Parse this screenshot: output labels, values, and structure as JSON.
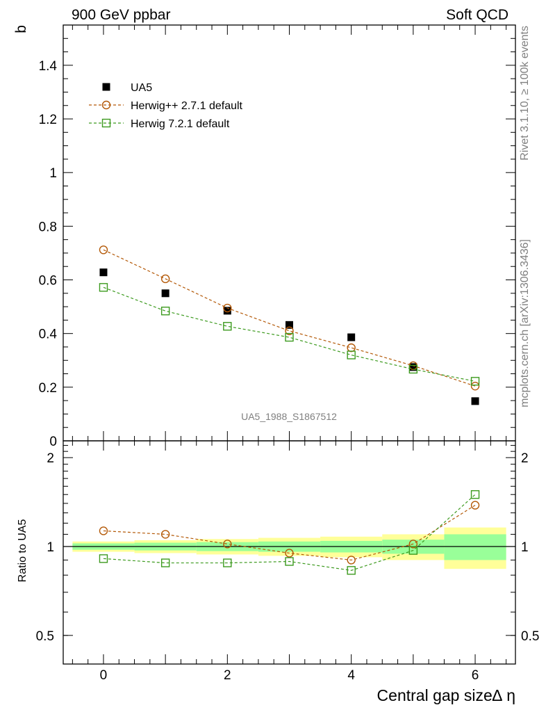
{
  "header": {
    "left_title": "900 GeV ppbar",
    "right_title": "Soft QCD"
  },
  "side_text": {
    "rivet": "Rivet 3.1.10, ≥ 100k events",
    "mcplots": "mcplots.cern.ch [arXiv:1306.3436]"
  },
  "chart_data": [
    {
      "type": "scatter",
      "panel": "main",
      "ylabel": "b",
      "ylim": [
        0,
        1.55
      ],
      "xlim": [
        -0.65,
        6.65
      ],
      "yticks": [
        "0",
        "0.2",
        "0.4",
        "0.6",
        "0.8",
        "1",
        "1.2",
        "1.4"
      ],
      "yticks_values": [
        0,
        0.2,
        0.4,
        0.6,
        0.8,
        1.0,
        1.2,
        1.4
      ],
      "watermark": "UA5_1988_S1867512",
      "legend_position": "top-left",
      "x": [
        0,
        1,
        2,
        3,
        4,
        5,
        6
      ],
      "series": [
        {
          "name": "UA5",
          "marker": "filled-square",
          "color": "#000000",
          "values": [
            0.628,
            0.55,
            0.485,
            0.432,
            0.386,
            0.275,
            0.148
          ]
        },
        {
          "name": "Herwig++ 2.7.1 default",
          "marker": "open-circle",
          "color": "#b35806",
          "values": [
            0.712,
            0.604,
            0.495,
            0.41,
            0.347,
            0.28,
            0.204
          ]
        },
        {
          "name": "Herwig 7.2.1 default",
          "marker": "open-square",
          "color": "#3c9a1e",
          "values": [
            0.572,
            0.484,
            0.427,
            0.386,
            0.32,
            0.267,
            0.222
          ]
        }
      ]
    },
    {
      "type": "line",
      "panel": "ratio",
      "ylabel": "Ratio to UA5",
      "xlabel": "Central gap size∆ η",
      "ylim": [
        0.4,
        2.28
      ],
      "log_y": true,
      "yticks": [
        "0.5",
        "1",
        "2"
      ],
      "yticks_values": [
        0.5,
        1,
        2
      ],
      "xticks": [
        "0",
        "2",
        "4",
        "6"
      ],
      "xticks_values": [
        0,
        2,
        4,
        6
      ],
      "x": [
        0,
        1,
        2,
        3,
        4,
        5,
        6
      ],
      "bands": {
        "yellow_halfwidth": [
          0.04,
          0.05,
          0.06,
          0.07,
          0.08,
          0.1,
          0.16
        ],
        "green_halfwidth": [
          0.025,
          0.03,
          0.035,
          0.04,
          0.045,
          0.055,
          0.1
        ]
      },
      "series": [
        {
          "name": "Herwig++ 2.7.1 default",
          "marker": "open-circle",
          "color": "#b35806",
          "values": [
            1.13,
            1.1,
            1.02,
            0.95,
            0.9,
            1.02,
            1.38
          ]
        },
        {
          "name": "Herwig 7.2.1 default",
          "marker": "open-square",
          "color": "#3c9a1e",
          "values": [
            0.91,
            0.88,
            0.88,
            0.89,
            0.83,
            0.97,
            1.5
          ]
        }
      ]
    }
  ]
}
